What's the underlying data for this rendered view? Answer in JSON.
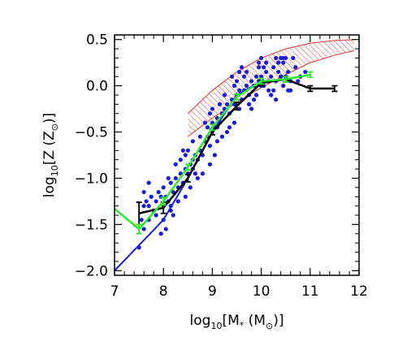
{
  "chart_data": {
    "type": "scatter",
    "title": "",
    "xlabel": "log10[M*(M⊙)]",
    "ylabel": "log10[Z (Z⊙)]",
    "xlabel_parts": {
      "pre": "log",
      "sub": "10",
      "mid": "[M",
      "star": "*",
      "post": " (M",
      "sun": "⊙",
      "close": ")]"
    },
    "ylabel_parts": {
      "pre": "log",
      "sub": "10",
      "mid": "[Z (Z",
      "sun": "⊙",
      "close": ")]"
    },
    "xlim": [
      7,
      12
    ],
    "ylim": [
      -2.05,
      0.55
    ],
    "x_ticks": [
      7,
      8,
      9,
      10,
      11,
      12
    ],
    "x_tick_labels": [
      "7",
      "8",
      "9",
      "10",
      "11",
      "12"
    ],
    "y_ticks": [
      -2.0,
      -1.5,
      -1.0,
      -0.5,
      0.0,
      0.5
    ],
    "y_tick_labels": [
      "−2.0",
      "−1.5",
      "−1.0",
      "−0.5",
      "0.0",
      "0.5"
    ],
    "grid": false,
    "legend": null,
    "colors": {
      "points": "#1a1adb",
      "fit": "#1a1adb",
      "black": "#000000",
      "green": "#2ee82e",
      "band": "#e03030"
    },
    "series": [
      {
        "kind": "scatter",
        "points": [
          [
            7.55,
            -1.45
          ],
          [
            7.6,
            -1.3
          ],
          [
            7.65,
            -1.25
          ],
          [
            7.7,
            -1.3
          ],
          [
            7.75,
            -1.2
          ],
          [
            7.8,
            -1.35
          ],
          [
            7.85,
            -1.25
          ],
          [
            7.9,
            -1.15
          ],
          [
            7.95,
            -1.2
          ],
          [
            8.0,
            -1.1
          ],
          [
            8.0,
            -1.3
          ],
          [
            8.05,
            -1.2
          ],
          [
            8.1,
            -1.25
          ],
          [
            8.15,
            -1.05
          ],
          [
            8.2,
            -1.15
          ],
          [
            8.25,
            -1.0
          ],
          [
            8.3,
            -1.1
          ],
          [
            8.35,
            -0.95
          ],
          [
            8.4,
            -1.05
          ],
          [
            8.45,
            -0.9
          ],
          [
            8.5,
            -0.95
          ],
          [
            8.55,
            -0.85
          ],
          [
            8.6,
            -0.9
          ],
          [
            8.65,
            -0.75
          ],
          [
            8.7,
            -0.8
          ],
          [
            8.75,
            -0.7
          ],
          [
            8.8,
            -0.75
          ],
          [
            8.85,
            -0.6
          ],
          [
            8.9,
            -0.55
          ],
          [
            8.95,
            -0.65
          ],
          [
            9.0,
            -0.5
          ],
          [
            9.0,
            -0.4
          ],
          [
            9.05,
            -0.45
          ],
          [
            9.1,
            -0.35
          ],
          [
            9.15,
            -0.4
          ],
          [
            9.2,
            -0.3
          ],
          [
            9.25,
            -0.25
          ],
          [
            9.3,
            -0.2
          ],
          [
            9.35,
            -0.3
          ],
          [
            9.4,
            -0.15
          ],
          [
            9.45,
            -0.2
          ],
          [
            9.5,
            -0.1
          ],
          [
            9.55,
            -0.05
          ],
          [
            9.6,
            -0.15
          ],
          [
            9.65,
            -0.05
          ],
          [
            9.7,
            0.0
          ],
          [
            9.75,
            -0.1
          ],
          [
            9.8,
            0.05
          ],
          [
            9.85,
            0.0
          ],
          [
            9.9,
            0.1
          ],
          [
            9.95,
            0.05
          ],
          [
            10.0,
            0.1
          ],
          [
            10.05,
            0.0
          ],
          [
            10.1,
            0.15
          ],
          [
            10.15,
            0.05
          ],
          [
            10.2,
            0.1
          ],
          [
            10.25,
            0.2
          ],
          [
            10.3,
            0.05
          ],
          [
            10.35,
            0.15
          ],
          [
            10.4,
            0.1
          ],
          [
            10.45,
            0.25
          ],
          [
            10.5,
            0.1
          ],
          [
            10.55,
            0.15
          ],
          [
            10.6,
            0.05
          ],
          [
            10.7,
            0.2
          ],
          [
            10.8,
            0.1
          ],
          [
            10.9,
            0.15
          ],
          [
            7.5,
            -1.75
          ],
          [
            7.6,
            -1.55
          ],
          [
            7.7,
            -1.45
          ],
          [
            8.0,
            -1.45
          ],
          [
            8.1,
            -1.0
          ],
          [
            8.3,
            -1.25
          ],
          [
            8.5,
            -0.7
          ],
          [
            8.7,
            -1.0
          ],
          [
            8.9,
            -0.45
          ],
          [
            9.1,
            -0.6
          ],
          [
            9.3,
            -0.5
          ],
          [
            9.5,
            0.05
          ],
          [
            9.6,
            0.2
          ],
          [
            9.8,
            -0.25
          ],
          [
            10.0,
            0.3
          ],
          [
            10.2,
            -0.1
          ],
          [
            10.4,
            0.3
          ],
          [
            10.6,
            -0.05
          ],
          [
            8.2,
            -1.4
          ],
          [
            8.4,
            -0.7
          ],
          [
            8.6,
            -0.6
          ],
          [
            8.8,
            -0.95
          ],
          [
            9.0,
            -0.25
          ],
          [
            9.2,
            -0.55
          ],
          [
            9.4,
            0.1
          ],
          [
            9.7,
            0.15
          ],
          [
            9.9,
            -0.1
          ],
          [
            10.1,
            0.25
          ],
          [
            10.3,
            -0.15
          ],
          [
            10.5,
            0.3
          ],
          [
            7.7,
            -1.05
          ],
          [
            7.85,
            -1.4
          ],
          [
            8.05,
            -1.55
          ],
          [
            8.25,
            -0.85
          ],
          [
            8.45,
            -1.2
          ],
          [
            8.65,
            -0.95
          ],
          [
            8.85,
            -0.4
          ],
          [
            9.05,
            -0.75
          ],
          [
            9.25,
            -0.1
          ],
          [
            9.45,
            -0.4
          ],
          [
            9.65,
            0.1
          ],
          [
            9.85,
            -0.15
          ],
          [
            10.05,
            0.2
          ],
          [
            10.25,
            -0.05
          ],
          [
            10.45,
            0.0
          ],
          [
            10.65,
            0.3
          ],
          [
            8.15,
            -1.35
          ],
          [
            8.35,
            -0.8
          ],
          [
            8.55,
            -1.1
          ],
          [
            8.75,
            -0.55
          ],
          [
            8.95,
            -0.85
          ],
          [
            9.15,
            -0.2
          ],
          [
            9.35,
            -0.45
          ],
          [
            9.55,
            0.15
          ],
          [
            9.75,
            -0.2
          ],
          [
            9.95,
            0.2
          ],
          [
            10.15,
            -0.05
          ],
          [
            10.35,
            0.25
          ],
          [
            10.55,
            -0.05
          ],
          [
            7.95,
            -1.6
          ],
          [
            8.45,
            -0.75
          ],
          [
            8.95,
            -0.3
          ],
          [
            9.45,
            0.0
          ],
          [
            9.95,
            0.25
          ],
          [
            10.45,
            0.3
          ],
          [
            7.6,
            -1.15
          ],
          [
            8.15,
            -1.3
          ],
          [
            8.6,
            -0.8
          ],
          [
            9.1,
            -0.45
          ],
          [
            9.55,
            -0.25
          ],
          [
            10.0,
            0.0
          ],
          [
            10.3,
            0.3
          ],
          [
            10.75,
            0.05
          ]
        ]
      },
      {
        "kind": "line",
        "label": "fit",
        "points": [
          [
            7.0,
            -2.0
          ],
          [
            8.0,
            -1.45
          ],
          [
            8.5,
            -1.0
          ],
          [
            9.0,
            -0.5
          ],
          [
            9.5,
            -0.1
          ],
          [
            10.0,
            0.05
          ]
        ]
      },
      {
        "kind": "line-errorbars",
        "color": "black",
        "points": [
          [
            7.5,
            -1.38,
            0.12
          ],
          [
            8.0,
            -1.32,
            0.06
          ],
          [
            8.5,
            -1.0,
            0.04
          ],
          [
            9.0,
            -0.5,
            0.03
          ],
          [
            9.5,
            -0.22,
            0.04
          ],
          [
            10.0,
            0.03,
            0.03
          ],
          [
            10.5,
            0.07,
            0.03
          ],
          [
            11.0,
            -0.03,
            0.03
          ],
          [
            11.5,
            -0.03,
            0.03
          ]
        ]
      },
      {
        "kind": "line-errorbars",
        "color": "green",
        "points": [
          [
            7.0,
            -1.33,
            0.0
          ],
          [
            7.5,
            -1.55,
            0.05
          ],
          [
            8.0,
            -1.25,
            0.04
          ],
          [
            8.5,
            -0.88,
            0.03
          ],
          [
            9.0,
            -0.45,
            0.03
          ],
          [
            9.5,
            -0.12,
            0.03
          ],
          [
            10.0,
            0.05,
            0.03
          ],
          [
            10.5,
            0.07,
            0.03
          ],
          [
            11.0,
            0.12,
            0.03
          ]
        ]
      },
      {
        "kind": "band",
        "color": "red",
        "lower": [
          [
            8.5,
            -0.55
          ],
          [
            9.0,
            -0.35
          ],
          [
            9.5,
            -0.18
          ],
          [
            10.0,
            -0.02
          ],
          [
            10.5,
            0.12
          ],
          [
            11.0,
            0.25
          ],
          [
            11.5,
            0.33
          ],
          [
            11.9,
            0.38
          ]
        ],
        "upper": [
          [
            8.5,
            -0.3
          ],
          [
            9.0,
            -0.05
          ],
          [
            9.5,
            0.15
          ],
          [
            10.0,
            0.3
          ],
          [
            10.5,
            0.4
          ],
          [
            11.0,
            0.46
          ],
          [
            11.5,
            0.49
          ],
          [
            11.9,
            0.5
          ]
        ]
      }
    ]
  }
}
